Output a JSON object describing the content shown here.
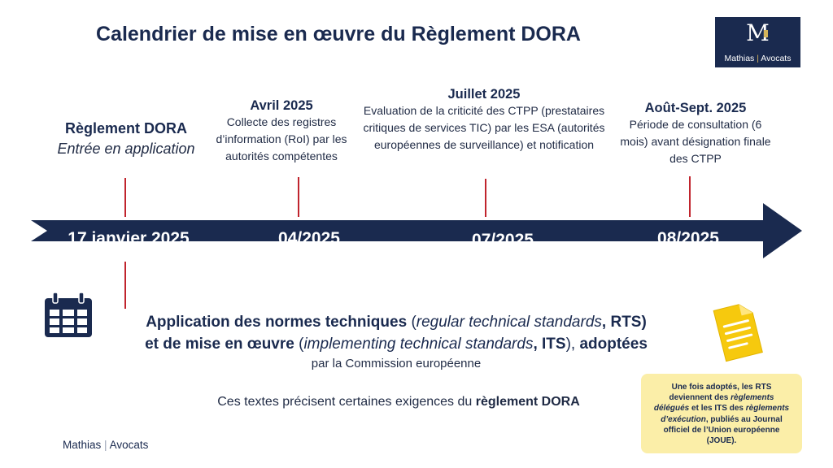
{
  "title": "Calendrier de mise en œuvre du Règlement DORA",
  "logo": {
    "mark": "M",
    "name_left": "Mathias",
    "name_sep": "|",
    "name_right": "Avocats"
  },
  "colors": {
    "navy": "#1a2a4f",
    "accent_red": "#c0242d",
    "note_bg": "#fbeea8",
    "doc_icon": "#f6c90e",
    "gold": "#d4b35a"
  },
  "milestones": [
    {
      "date": "17 janvier 2025",
      "head": "Règlement DORA",
      "sub": "Entrée en application"
    },
    {
      "date": "04/2025",
      "head": "Avril 2025",
      "desc": "Collecte des registres d’information (RoI) par les autorités compétentes"
    },
    {
      "date": "07/2025",
      "head": "Juillet 2025",
      "desc": "Evaluation de la criticité des CTPP (prestataires critiques de services TIC) par les ESA (autorités européennes de surveillance) et notification"
    },
    {
      "date": "08/2025",
      "head": "Août-Sept. 2025",
      "desc": "Période de consultation (6 mois) avant désignation finale des CTPP"
    }
  ],
  "rts": {
    "p1": "Application des normes techniques",
    "p2": "(",
    "p3": "regular technical standards",
    "p4": ", ",
    "p5": "RTS",
    "p6": ")",
    "p7": "et de mise en œuvre",
    "p8": " (",
    "p9": "implementing technical standards",
    "p10": ", ",
    "p11": "ITS",
    "p12": "), ",
    "p13": "adoptées",
    "line3": "par la Commission européenne"
  },
  "precise": {
    "text": "Ces textes précisent certaines exigences du ",
    "bold": "règlement DORA"
  },
  "note": {
    "a": "Une fois adoptés, les RTS deviennent des ",
    "b": "règlements délégués",
    "c": " et les ITS des ",
    "d": "règlements d’exécution",
    "e": ", publiés au Journal officiel de l’Union européenne (JOUE)."
  },
  "footer": {
    "left": "Mathias",
    "sep": "|",
    "right": "Avocats"
  },
  "icons": {
    "calendar": "calendar-icon",
    "document": "document-icon"
  }
}
